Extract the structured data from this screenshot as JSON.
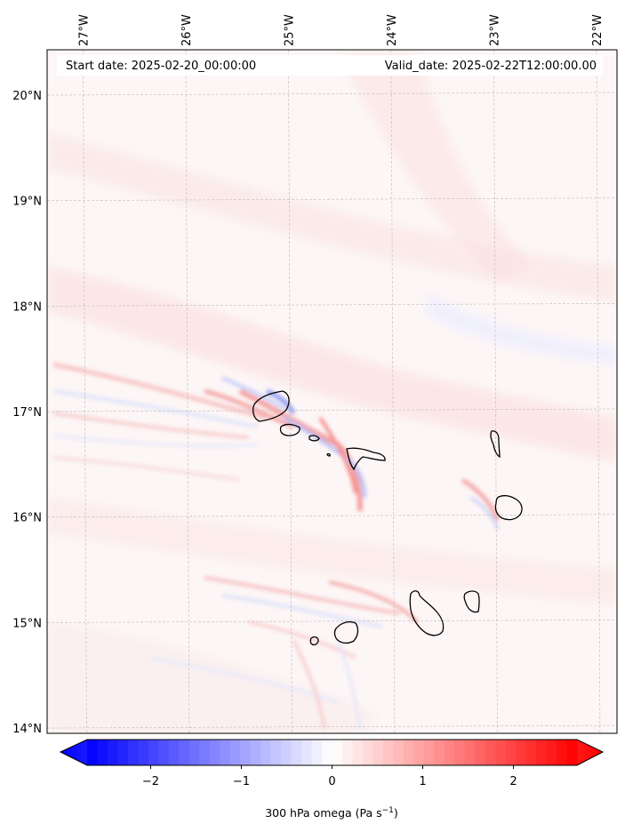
{
  "header": {
    "start_text": "Start date: 2025-02-20_00:00:00",
    "valid_text": "Valid_date: 2025-02-22T12:00:00.00"
  },
  "lon_ticks": [
    {
      "value": -27,
      "label": "27°W"
    },
    {
      "value": -26,
      "label": "26°W"
    },
    {
      "value": -25,
      "label": "25°W"
    },
    {
      "value": -24,
      "label": "24°W"
    },
    {
      "value": -23,
      "label": "23°W"
    },
    {
      "value": -22,
      "label": "22°W"
    }
  ],
  "lat_ticks": [
    {
      "value": 20,
      "label": "20°N"
    },
    {
      "value": 19,
      "label": "19°N"
    },
    {
      "value": 18,
      "label": "18°N"
    },
    {
      "value": 17,
      "label": "17°N"
    },
    {
      "value": 16,
      "label": "16°N"
    },
    {
      "value": 15,
      "label": "15°N"
    },
    {
      "value": 14,
      "label": "14°N"
    }
  ],
  "map_extent": {
    "lon_min": -27.35,
    "lon_max": -21.8,
    "lat_min": 13.95,
    "lat_max": 20.43
  },
  "colorbar": {
    "vmin": -2.7,
    "vmax": 2.7,
    "extend": "both",
    "colors": {
      "negative": "#0000ff",
      "zero": "#ffffff",
      "positive": "#ff0000"
    },
    "ticks": [
      {
        "value": -2,
        "label": "−2"
      },
      {
        "value": -1,
        "label": "−1"
      },
      {
        "value": 0,
        "label": "0"
      },
      {
        "value": 1,
        "label": "1"
      },
      {
        "value": 2,
        "label": "2"
      }
    ],
    "label": "300 hPa omega (Pa s",
    "label_exp": "−1",
    "label_close": ")"
  }
}
